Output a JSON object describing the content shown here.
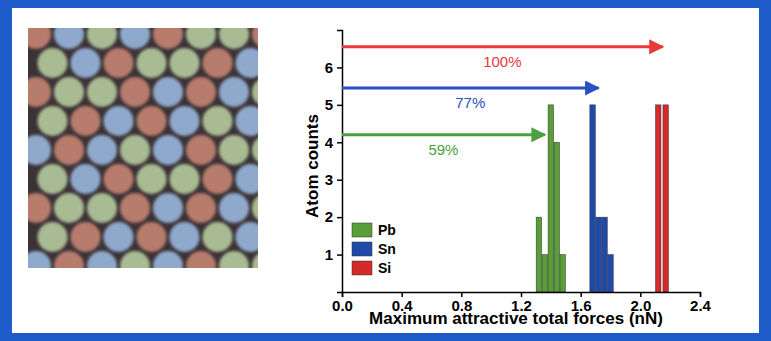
{
  "chart_data": {
    "type": "bar",
    "x_label": "Maximum attractive total forces (nN)",
    "y_label": "Atom counts",
    "xlim": [
      0,
      2.4
    ],
    "xticks": [
      {
        "value": 0,
        "label": "0.0"
      },
      0.4,
      0.8,
      1.2,
      1.6,
      {
        "value": 2,
        "label": "2.0"
      },
      2.4
    ],
    "ylim": [
      0,
      7
    ],
    "yticks": [
      1,
      2,
      3,
      4,
      5,
      6
    ],
    "legend": "lower left",
    "series": [
      {
        "name": "Pb",
        "color": "#5a9e3a",
        "x": [
          1.32,
          1.36,
          1.4,
          1.44,
          1.48
        ],
        "values": [
          2,
          1,
          5,
          4,
          1
        ]
      },
      {
        "name": "Sn",
        "color": "#1f4aa8",
        "x": [
          1.68,
          1.72,
          1.76,
          1.8
        ],
        "values": [
          5,
          2,
          2,
          1
        ]
      },
      {
        "name": "Si",
        "color": "#d42a2a",
        "x": [
          2.12,
          2.17
        ],
        "values": [
          5,
          5
        ]
      }
    ],
    "annotations": [
      {
        "text": "100%",
        "x": [
          0,
          2.15
        ],
        "y": 6.55,
        "color": "#e8383a"
      },
      {
        "text": "77%",
        "x": [
          0,
          1.72
        ],
        "y": 5.45,
        "color": "#2a4fc0"
      },
      {
        "text": "59%",
        "x": [
          0,
          1.36
        ],
        "y": 4.2,
        "color": "#4aa043"
      }
    ]
  }
}
